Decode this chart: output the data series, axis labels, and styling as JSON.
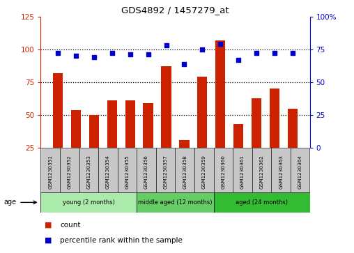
{
  "title": "GDS4892 / 1457279_at",
  "samples": [
    "GSM1230351",
    "GSM1230352",
    "GSM1230353",
    "GSM1230354",
    "GSM1230355",
    "GSM1230356",
    "GSM1230357",
    "GSM1230358",
    "GSM1230359",
    "GSM1230360",
    "GSM1230361",
    "GSM1230362",
    "GSM1230363",
    "GSM1230364"
  ],
  "bar_values": [
    82,
    54,
    50,
    61,
    61,
    59,
    87,
    31,
    79,
    107,
    43,
    63,
    70,
    55
  ],
  "dot_values": [
    72,
    70,
    69,
    72,
    71,
    71,
    78,
    64,
    75,
    79,
    67,
    72,
    72,
    72
  ],
  "bar_color": "#cc2200",
  "dot_color": "#0000cc",
  "ylim_left": [
    25,
    125
  ],
  "ylim_right": [
    0,
    100
  ],
  "yticks_left": [
    25,
    50,
    75,
    100,
    125
  ],
  "yticks_right": [
    0,
    25,
    50,
    75,
    100
  ],
  "groups": [
    {
      "label": "young (2 months)",
      "start": 0,
      "end": 5,
      "color": "#aaeaaa"
    },
    {
      "label": "middle aged (12 months)",
      "start": 5,
      "end": 9,
      "color": "#66cc66"
    },
    {
      "label": "aged (24 months)",
      "start": 9,
      "end": 14,
      "color": "#33bb33"
    }
  ],
  "age_label": "age",
  "legend_count_label": "count",
  "legend_percentile_label": "percentile rank within the sample",
  "grid_dotted_values": [
    50,
    75,
    100
  ],
  "tick_area_color": "#c8c8c8"
}
